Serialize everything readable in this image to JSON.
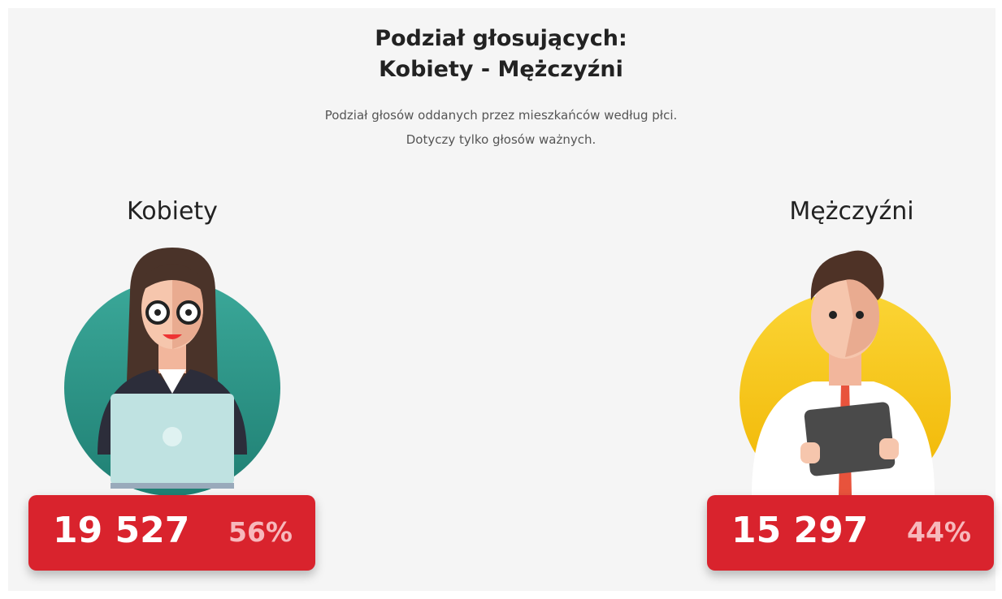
{
  "header": {
    "title": [
      "Podział głosujących:",
      "Kobiety - Mężczyźni"
    ],
    "subtitle": [
      "Podział głosów oddanych przez mieszkańców według płci.",
      "Dotyczy tylko głosów ważnych."
    ]
  },
  "groups": [
    {
      "label": "Kobiety",
      "count": "19 527",
      "percent": "56%"
    },
    {
      "label": "Mężczyźni",
      "count": "15 297",
      "percent": "44%"
    }
  ]
}
